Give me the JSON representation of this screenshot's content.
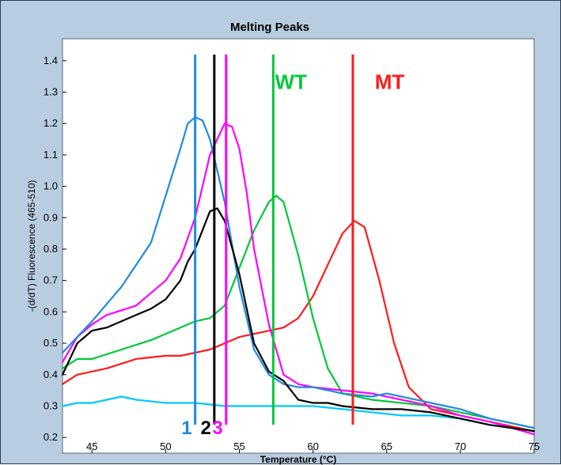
{
  "chart_data": {
    "type": "line",
    "title": "Melting Peaks",
    "xlabel": "Temperature (°C)",
    "ylabel": "-(d/dT) Fluorescence (465-510)",
    "xlim": [
      43,
      75
    ],
    "ylim": [
      0.15,
      1.47
    ],
    "xticks": [
      45,
      50,
      55,
      60,
      65,
      70,
      75
    ],
    "yticks": [
      0.2,
      0.3,
      0.4,
      0.5,
      0.6,
      0.7,
      0.8,
      0.9,
      1.0,
      1.1,
      1.2,
      1.3,
      1.4
    ],
    "grid": false,
    "series": [
      {
        "color": "#00c8ff",
        "x": [
          43,
          44,
          45,
          46,
          47,
          48,
          50,
          52,
          54,
          56,
          58,
          60,
          62,
          64,
          66,
          68,
          70,
          72,
          75
        ],
        "y": [
          0.3,
          0.31,
          0.31,
          0.32,
          0.33,
          0.32,
          0.31,
          0.31,
          0.3,
          0.3,
          0.3,
          0.3,
          0.29,
          0.28,
          0.27,
          0.27,
          0.26,
          0.24,
          0.22
        ]
      },
      {
        "color": "#ff1a1a",
        "x": [
          43,
          44,
          46,
          48,
          50,
          51,
          52,
          53,
          54,
          55,
          56,
          57,
          58,
          59,
          60,
          61,
          62,
          62.8,
          63.5,
          64.5,
          65.5,
          66.5,
          68,
          70,
          72,
          75
        ],
        "y": [
          0.37,
          0.4,
          0.42,
          0.45,
          0.46,
          0.46,
          0.47,
          0.48,
          0.5,
          0.52,
          0.53,
          0.54,
          0.55,
          0.58,
          0.65,
          0.75,
          0.85,
          0.89,
          0.87,
          0.7,
          0.5,
          0.36,
          0.29,
          0.27,
          0.25,
          0.22
        ]
      },
      {
        "color": "#00c838",
        "x": [
          43,
          44,
          45,
          47,
          49,
          51,
          52,
          53,
          54,
          55,
          56,
          57,
          57.5,
          58,
          59,
          60,
          61,
          62,
          64,
          66,
          68,
          70,
          72,
          75
        ],
        "y": [
          0.42,
          0.45,
          0.45,
          0.48,
          0.51,
          0.55,
          0.57,
          0.58,
          0.62,
          0.74,
          0.86,
          0.95,
          0.97,
          0.95,
          0.78,
          0.58,
          0.42,
          0.34,
          0.32,
          0.31,
          0.3,
          0.28,
          0.26,
          0.23
        ]
      },
      {
        "color": "#ff00ff",
        "x": [
          43,
          44,
          45,
          46,
          48,
          50,
          51,
          52,
          53,
          54,
          54.5,
          55,
          55.5,
          56,
          57,
          58,
          59,
          60,
          62,
          64,
          66,
          68,
          70,
          72,
          75
        ],
        "y": [
          0.44,
          0.52,
          0.56,
          0.59,
          0.62,
          0.7,
          0.77,
          0.9,
          1.1,
          1.2,
          1.19,
          1.12,
          0.98,
          0.8,
          0.56,
          0.4,
          0.37,
          0.36,
          0.35,
          0.34,
          0.32,
          0.3,
          0.27,
          0.25,
          0.21
        ]
      },
      {
        "color": "#1f8ae0",
        "x": [
          43,
          44,
          45,
          47,
          49,
          50,
          51,
          51.5,
          52,
          52.5,
          53,
          54,
          55,
          56,
          57,
          58,
          59,
          60,
          62,
          64,
          65,
          66,
          68,
          70,
          72,
          75
        ],
        "y": [
          0.47,
          0.52,
          0.57,
          0.68,
          0.82,
          0.97,
          1.12,
          1.2,
          1.22,
          1.21,
          1.15,
          0.95,
          0.68,
          0.48,
          0.4,
          0.37,
          0.36,
          0.36,
          0.34,
          0.33,
          0.34,
          0.33,
          0.31,
          0.29,
          0.26,
          0.23
        ]
      },
      {
        "color": "#000000",
        "x": [
          43,
          44,
          45,
          46,
          47,
          48,
          49,
          50,
          51,
          51.5,
          52,
          52.5,
          53,
          53.5,
          54,
          55,
          56,
          57,
          58,
          59,
          60,
          61,
          62,
          64,
          66,
          68,
          70,
          72,
          75
        ],
        "y": [
          0.4,
          0.5,
          0.54,
          0.55,
          0.57,
          0.59,
          0.61,
          0.64,
          0.7,
          0.76,
          0.8,
          0.86,
          0.92,
          0.93,
          0.89,
          0.72,
          0.5,
          0.41,
          0.38,
          0.32,
          0.31,
          0.31,
          0.3,
          0.29,
          0.29,
          0.28,
          0.26,
          0.24,
          0.22
        ]
      }
    ],
    "vertical_lines": [
      {
        "x": 52,
        "color": "#1f8ae0",
        "label": "1"
      },
      {
        "x": 53.3,
        "color": "#000000",
        "label": "2"
      },
      {
        "x": 54.1,
        "color": "#ff00ff",
        "label": "3"
      },
      {
        "x": 57.3,
        "color": "#00c838",
        "label": ""
      },
      {
        "x": 62.7,
        "color": "#ff1a1a",
        "label": ""
      }
    ],
    "annotations": [
      {
        "text": "WT",
        "color": "#00c838",
        "x": 58.5,
        "y": 1.31
      },
      {
        "text": "MT",
        "color": "#ff1a1a",
        "x": 65.2,
        "y": 1.31
      }
    ]
  }
}
